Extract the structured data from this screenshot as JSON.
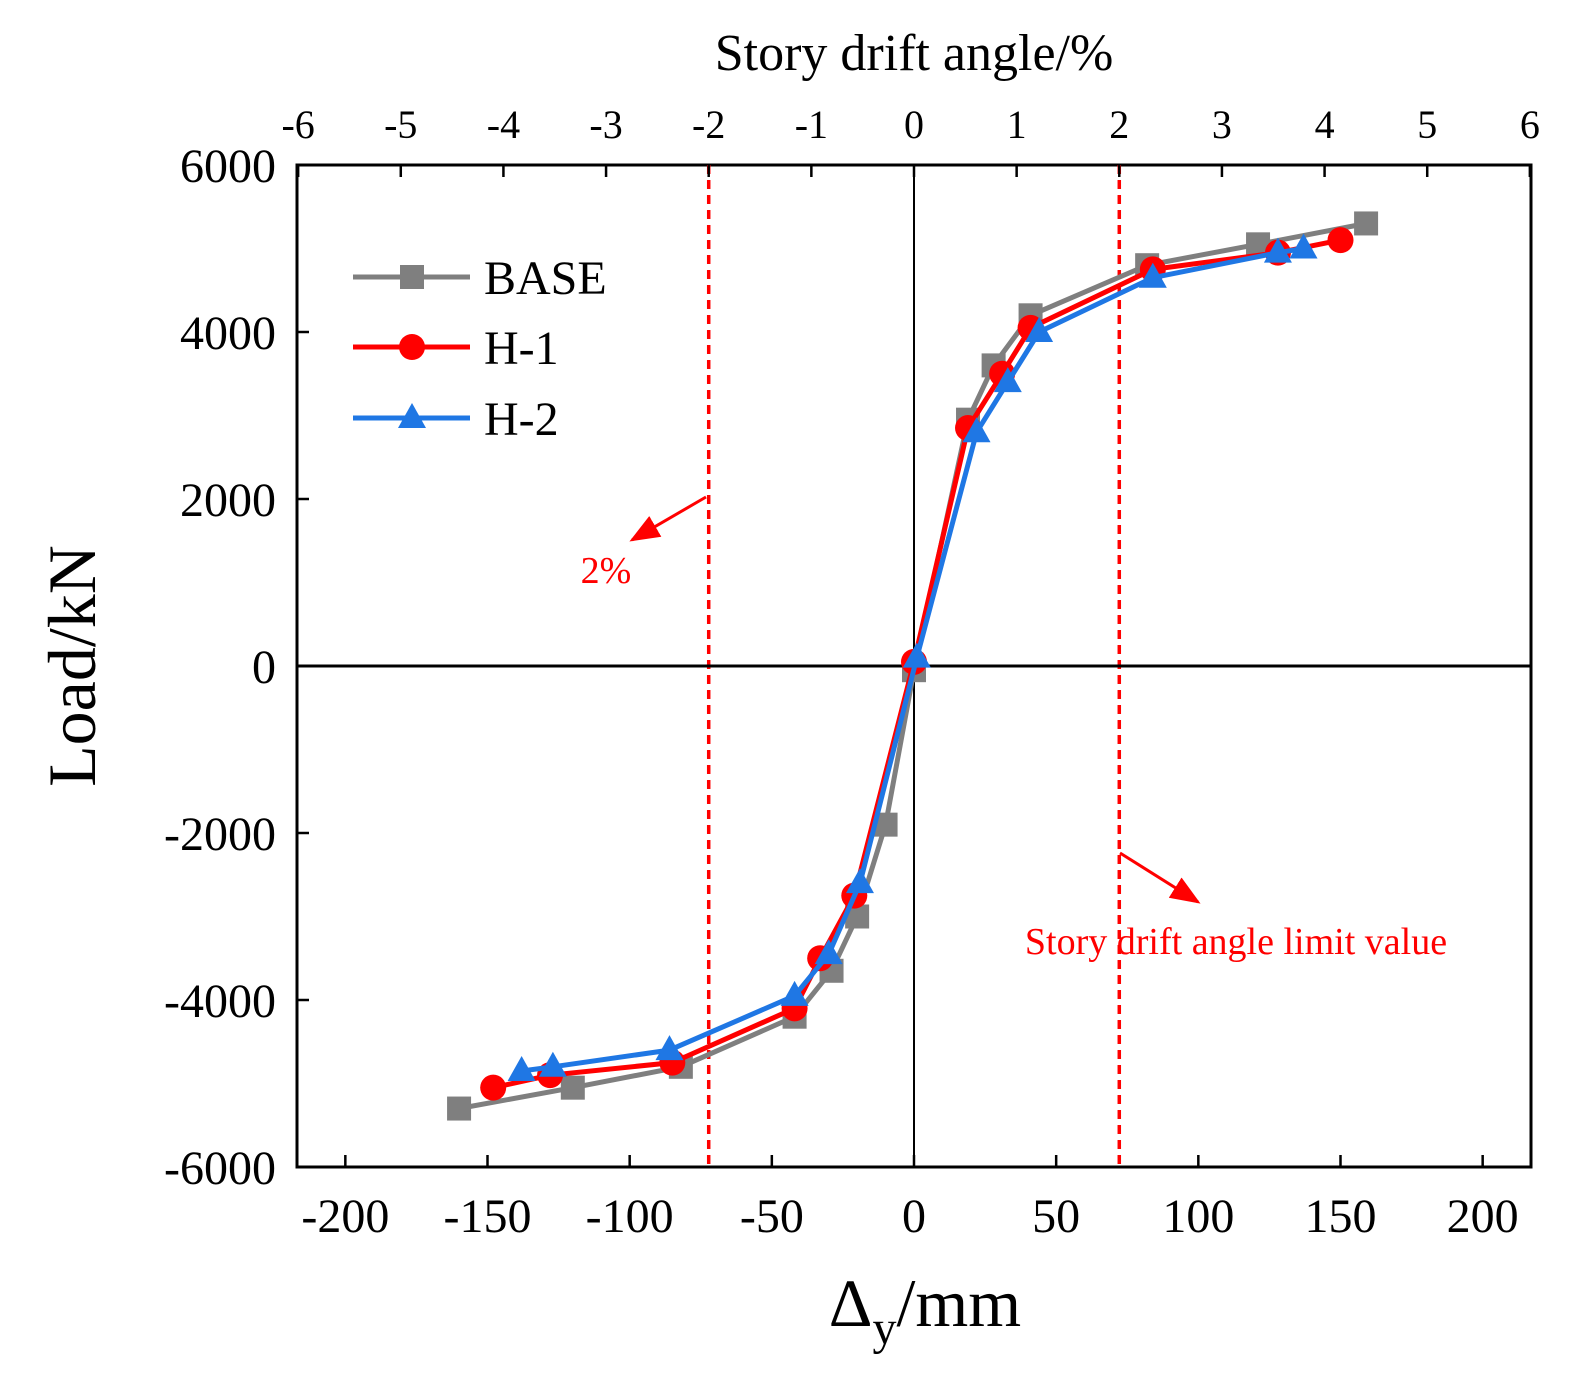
{
  "chart_data": {
    "type": "line",
    "title": "",
    "xlabel_main": "Δ",
    "xlabel_sub": "y",
    "xlabel_unit": "/mm",
    "ylabel": "Load/kN",
    "top_xlabel": "Story drift angle/%",
    "xlim": [
      -217,
      217
    ],
    "ylim": [
      -6000,
      6000
    ],
    "x_ticks": [
      -200,
      -150,
      -100,
      -50,
      0,
      50,
      100,
      150,
      200
    ],
    "y_ticks": [
      -6000,
      -4000,
      -2000,
      0,
      2000,
      4000,
      6000
    ],
    "top_ticks": [
      -6,
      -5,
      -4,
      -3,
      -2,
      -1,
      0,
      1,
      2,
      3,
      4,
      5,
      6
    ],
    "top_scale_mm_per_percent": 36.1,
    "grid": false,
    "legend_position": "top-left",
    "series": [
      {
        "name": "BASE",
        "color": "#7f7f7f",
        "marker": "square",
        "x": [
          -160,
          -120,
          -82,
          -42,
          -29,
          -20,
          -10,
          0,
          19,
          28,
          41,
          82,
          121,
          159
        ],
        "y": [
          -5300,
          -5050,
          -4800,
          -4200,
          -3650,
          -3000,
          -1900,
          -50,
          2950,
          3600,
          4200,
          4800,
          5050,
          5300
        ]
      },
      {
        "name": "H-1",
        "color": "#ff0000",
        "marker": "circle",
        "x": [
          -148,
          -128,
          -85,
          -42,
          -33,
          -21,
          0,
          19,
          31,
          41,
          84,
          128,
          150
        ],
        "y": [
          -5050,
          -4900,
          -4750,
          -4100,
          -3500,
          -2750,
          50,
          2850,
          3500,
          4050,
          4750,
          4950,
          5100
        ]
      },
      {
        "name": "H-2",
        "color": "#1f77e4",
        "marker": "triangle",
        "x": [
          -138,
          -127,
          -86,
          -42,
          -30,
          -19,
          1,
          22,
          33,
          44,
          84,
          128,
          137
        ],
        "y": [
          -4850,
          -4800,
          -4600,
          -3950,
          -3450,
          -2600,
          100,
          2800,
          3400,
          4000,
          4650,
          4950,
          5000
        ]
      }
    ],
    "reference_lines": [
      {
        "x": -72.2,
        "color": "#ff0000",
        "style": "dashed"
      },
      {
        "x": 72.2,
        "color": "#ff0000",
        "style": "dashed"
      }
    ],
    "annotations": [
      {
        "text": "2%",
        "color": "#ff0000"
      },
      {
        "text": "Story drift angle limit value",
        "color": "#ff0000"
      }
    ]
  }
}
